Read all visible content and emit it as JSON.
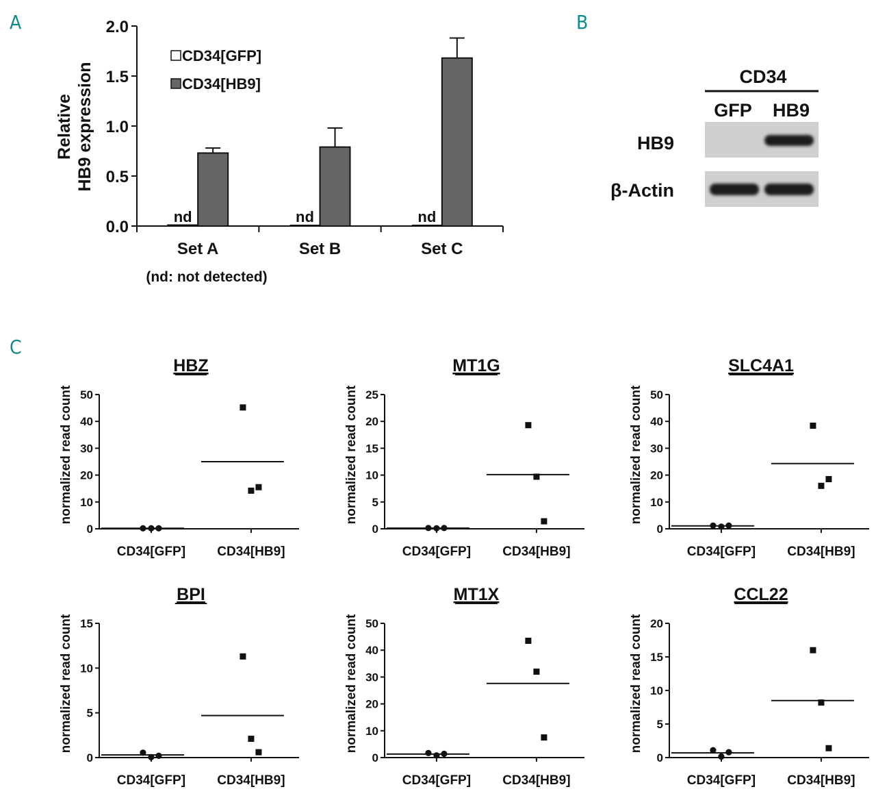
{
  "panels": {
    "a": "A",
    "b": "B",
    "c": "C"
  },
  "colors": {
    "panel_letter": "#0f8a8a",
    "bar_gfp": "#ffffff",
    "bar_hb9": "#666666",
    "axis": "#111111"
  },
  "chart_data": [
    {
      "type": "bar",
      "panel": "A",
      "categories": [
        "Set A",
        "Set B",
        "Set C"
      ],
      "ylabel": "Relative\nHB9 expression",
      "ylim": [
        0,
        2.0
      ],
      "yticks": [
        "0.0",
        "0.5",
        "1.0",
        "1.5",
        "2.0"
      ],
      "legend_placement": "top-left",
      "series": [
        {
          "name": "CD34[GFP]",
          "values": [
            0.01,
            0,
            0
          ],
          "errors": [
            0,
            0,
            0
          ],
          "bar_labels": [
            "nd",
            "nd",
            "nd"
          ]
        },
        {
          "name": "CD34[HB9]",
          "values": [
            0.73,
            0.79,
            1.68
          ],
          "errors": [
            0.05,
            0.19,
            0.2
          ]
        }
      ],
      "footnote": "(nd: not detected)"
    },
    {
      "type": "scatter",
      "gene": "HBZ",
      "ylabel": "normalized read count",
      "ylim": [
        0,
        50
      ],
      "yticks": [
        0,
        10,
        20,
        30,
        40,
        50
      ],
      "groups": [
        {
          "name": "CD34[GFP]",
          "marker": "circle",
          "values": [
            0.2,
            0.2,
            0.2
          ],
          "mean": 0.2
        },
        {
          "name": "CD34[HB9]",
          "marker": "square",
          "values": [
            45.2,
            14.2,
            15.5
          ],
          "mean": 25.0
        }
      ]
    },
    {
      "type": "scatter",
      "gene": "MT1G",
      "ylabel": "normalized read count",
      "ylim": [
        0,
        25
      ],
      "yticks": [
        0,
        5,
        10,
        15,
        20,
        25
      ],
      "groups": [
        {
          "name": "CD34[GFP]",
          "marker": "circle",
          "values": [
            0.15,
            0.1,
            0.15
          ],
          "mean": 0.13
        },
        {
          "name": "CD34[HB9]",
          "marker": "square",
          "values": [
            19.3,
            9.7,
            1.4
          ],
          "mean": 10.1
        }
      ]
    },
    {
      "type": "scatter",
      "gene": "SLC4A1",
      "ylabel": "normalized read count",
      "ylim": [
        0,
        50
      ],
      "yticks": [
        0,
        10,
        20,
        30,
        40,
        50
      ],
      "groups": [
        {
          "name": "CD34[GFP]",
          "marker": "circle",
          "values": [
            1.2,
            0.8,
            1.2
          ],
          "mean": 1.1
        },
        {
          "name": "CD34[HB9]",
          "marker": "square",
          "values": [
            38.4,
            16.0,
            18.5
          ],
          "mean": 24.3
        }
      ]
    },
    {
      "type": "scatter",
      "gene": "BPI",
      "ylabel": "normalized read count",
      "ylim": [
        0,
        15
      ],
      "yticks": [
        0,
        5,
        10,
        15
      ],
      "groups": [
        {
          "name": "CD34[GFP]",
          "marker": "circle",
          "values": [
            0.55,
            0.05,
            0.2
          ],
          "mean": 0.3
        },
        {
          "name": "CD34[HB9]",
          "marker": "square",
          "values": [
            11.3,
            2.1,
            0.6
          ],
          "mean": 4.7
        }
      ]
    },
    {
      "type": "scatter",
      "gene": "MT1X",
      "ylabel": "normalized read count",
      "ylim": [
        0,
        50
      ],
      "yticks": [
        0,
        10,
        20,
        30,
        40,
        50
      ],
      "groups": [
        {
          "name": "CD34[GFP]",
          "marker": "circle",
          "values": [
            1.7,
            0.8,
            1.4
          ],
          "mean": 1.3
        },
        {
          "name": "CD34[HB9]",
          "marker": "square",
          "values": [
            43.5,
            32.0,
            7.5
          ],
          "mean": 27.6
        }
      ]
    },
    {
      "type": "scatter",
      "gene": "CCL22",
      "ylabel": "normalized read count",
      "ylim": [
        0,
        20
      ],
      "yticks": [
        0,
        5,
        10,
        15,
        20
      ],
      "groups": [
        {
          "name": "CD34[GFP]",
          "marker": "circle",
          "values": [
            1.1,
            0.15,
            0.8
          ],
          "mean": 0.7
        },
        {
          "name": "CD34[HB9]",
          "marker": "square",
          "values": [
            16.0,
            8.2,
            1.4
          ],
          "mean": 8.5
        }
      ]
    }
  ],
  "gel": {
    "header": "CD34",
    "lanes": [
      "GFP",
      "HB9"
    ],
    "rows": [
      {
        "label": "HB9",
        "bands": [
          0,
          1
        ]
      },
      {
        "label": "β-Actin",
        "bands": [
          1,
          1
        ]
      }
    ]
  }
}
